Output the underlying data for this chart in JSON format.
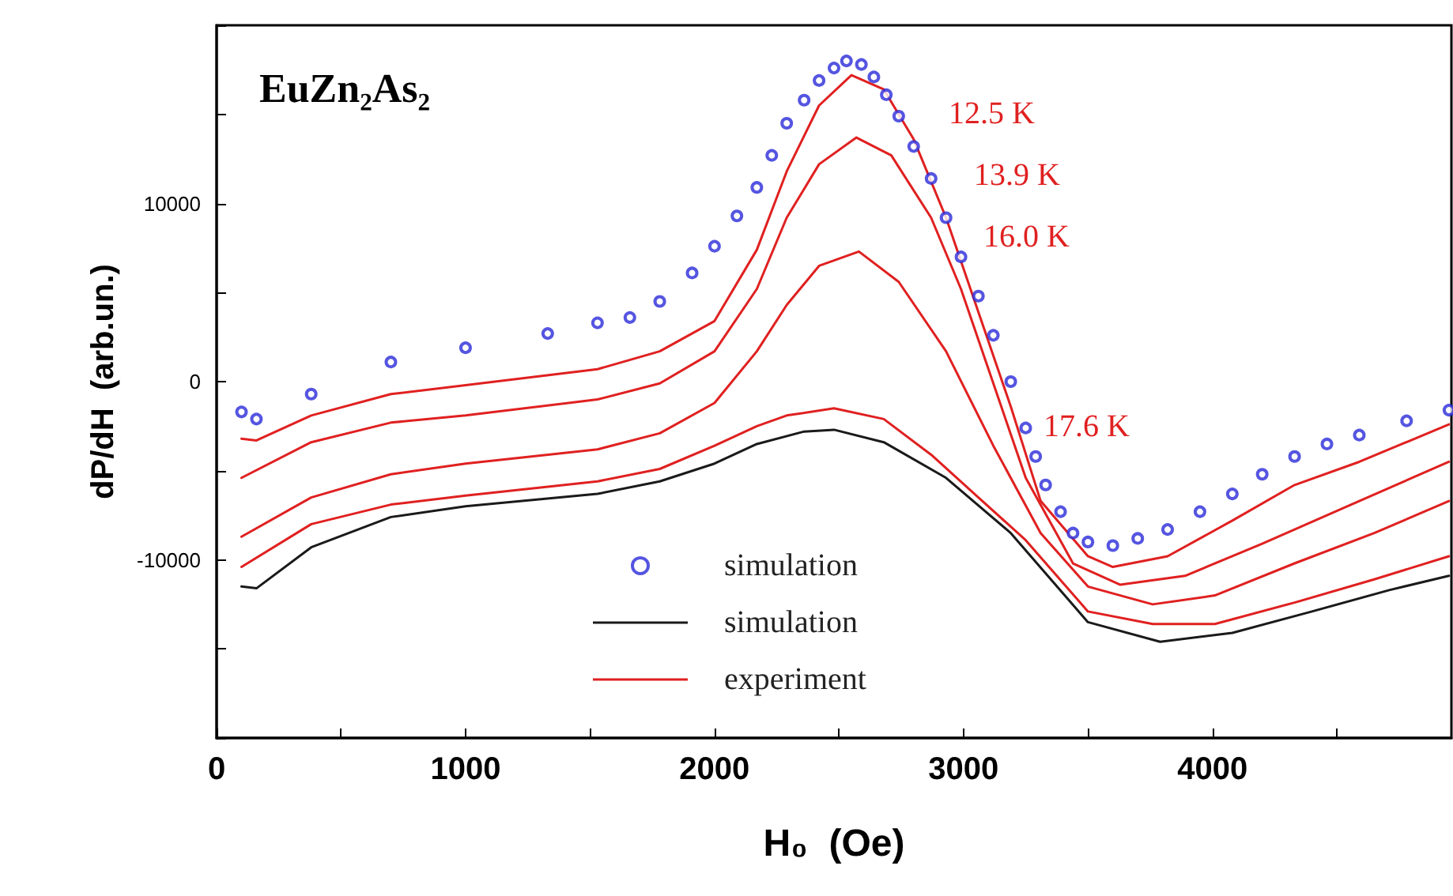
{
  "chart_data": {
    "type": "line",
    "title": "EuZn₂As₂",
    "xlabel": "H₀  (Oe)",
    "ylabel": "dP/dH  (arb.un.)",
    "xlim": [
      0,
      4960
    ],
    "xticks": [
      0,
      {
        "value": 500,
        "label": null
      },
      1000,
      {
        "value": 1500,
        "label": null
      },
      2000,
      {
        "value": 2500,
        "label": null
      },
      3000,
      {
        "value": 3500,
        "label": null
      },
      4000,
      {
        "value": 4500,
        "label": null
      }
    ],
    "ylim": [
      -20000,
      20000
    ],
    "yticks": [
      {
        "value": -20000,
        "label": null
      },
      {
        "value": -15000,
        "label": null
      },
      -10000,
      {
        "value": -5000,
        "label": null
      },
      0,
      {
        "value": 5000,
        "label": null
      },
      10000,
      {
        "value": 15000,
        "label": null
      },
      {
        "value": 20000,
        "label": null
      }
    ],
    "legend": "bottom",
    "line_style": "solid",
    "series": [
      {
        "name": "simulation",
        "type": "scatter",
        "marker": "circle",
        "color": "#2b2bd9",
        "x": [
          100,
          160,
          380,
          700,
          1000,
          1330,
          1530,
          1660,
          1780,
          1910,
          2000,
          2090,
          2170,
          2230,
          2290,
          2360,
          2420,
          2480,
          2530,
          2590,
          2640,
          2690,
          2740,
          2800,
          2870,
          2930,
          2990,
          3060,
          3120,
          3190,
          3250,
          3290,
          3330,
          3390,
          3440,
          3500,
          3600,
          3700,
          3820,
          3950,
          4080,
          4200,
          4330,
          4460,
          4590,
          4780,
          4950
        ],
        "values": [
          -1700,
          -2100,
          -700,
          1100,
          1900,
          2700,
          3300,
          3600,
          4500,
          6100,
          7600,
          9300,
          10900,
          12700,
          14500,
          15800,
          16900,
          17600,
          18000,
          17800,
          17100,
          16100,
          14900,
          13200,
          11400,
          9200,
          7000,
          4800,
          2600,
          0,
          -2600,
          -4200,
          -5800,
          -7300,
          -8500,
          -9000,
          -9200,
          -8800,
          -8300,
          -7300,
          -6300,
          -5200,
          -4200,
          -3500,
          -3000,
          -2200,
          -1600
        ]
      },
      {
        "name": "simulation",
        "color": "#1a1a1a",
        "x": [
          100,
          160,
          380,
          700,
          1000,
          1530,
          1780,
          2000,
          2170,
          2360,
          2480,
          2680,
          2930,
          3190,
          3500,
          3790,
          4080,
          4400,
          4710,
          4950
        ],
        "values": [
          -11500,
          -11600,
          -9300,
          -7600,
          -7000,
          -6300,
          -5600,
          -4600,
          -3500,
          -2800,
          -2700,
          -3400,
          -5400,
          -8500,
          -13500,
          -14600,
          -14100,
          -12900,
          -11700,
          -10900
        ]
      },
      {
        "name": "experiment",
        "color": "#e02020",
        "x": [
          100,
          160,
          380,
          700,
          1000,
          1530,
          1780,
          2000,
          2170,
          2290,
          2420,
          2550,
          2680,
          2800,
          2930,
          3060,
          3190,
          3310,
          3500,
          3600,
          3820,
          4080,
          4330,
          4590,
          4950
        ],
        "values": [
          -3200,
          -3300,
          -1900,
          -700,
          -200,
          700,
          1700,
          3400,
          7400,
          11800,
          15500,
          17200,
          16400,
          13600,
          9200,
          3900,
          -1400,
          -6700,
          -9800,
          -10400,
          -9800,
          -7800,
          -5800,
          -4500,
          -2400
        ]
      },
      {
        "color": "#e02020",
        "x": [
          100,
          380,
          700,
          1000,
          1530,
          1780,
          2000,
          2170,
          2290,
          2420,
          2570,
          2710,
          2870,
          2990,
          3120,
          3250,
          3440,
          3630,
          3890,
          4200,
          4590,
          4950
        ],
        "values": [
          -5400,
          -3400,
          -2300,
          -1900,
          -1000,
          -100,
          1700,
          5200,
          9200,
          12200,
          13700,
          12700,
          9200,
          5200,
          -100,
          -5400,
          -10200,
          -11400,
          -10900,
          -9100,
          -6700,
          -4500
        ]
      },
      {
        "color": "#e02020",
        "x": [
          100,
          380,
          700,
          1000,
          1530,
          1780,
          2000,
          2170,
          2290,
          2420,
          2580,
          2740,
          2930,
          3120,
          3310,
          3500,
          3760,
          4010,
          4330,
          4650,
          4950
        ],
        "values": [
          -8700,
          -6500,
          -5200,
          -4600,
          -3800,
          -2900,
          -1200,
          1700,
          4300,
          6500,
          7300,
          5600,
          1700,
          -3600,
          -8500,
          -11500,
          -12500,
          -12000,
          -10200,
          -8500,
          -6700
        ]
      },
      {
        "color": "#e02020",
        "x": [
          100,
          380,
          700,
          1000,
          1530,
          1780,
          2000,
          2170,
          2290,
          2480,
          2680,
          2870,
          3060,
          3250,
          3500,
          3760,
          4010,
          4330,
          4650,
          4950
        ],
        "values": [
          -10400,
          -8000,
          -6900,
          -6400,
          -5600,
          -4900,
          -3600,
          -2500,
          -1900,
          -1500,
          -2100,
          -4100,
          -6500,
          -8900,
          -12900,
          -13600,
          -13600,
          -12400,
          -11100,
          -9800
        ]
      }
    ],
    "annotations": [
      "12.5 K",
      "13.9 K",
      "16.0 K",
      "17.6 K"
    ]
  }
}
